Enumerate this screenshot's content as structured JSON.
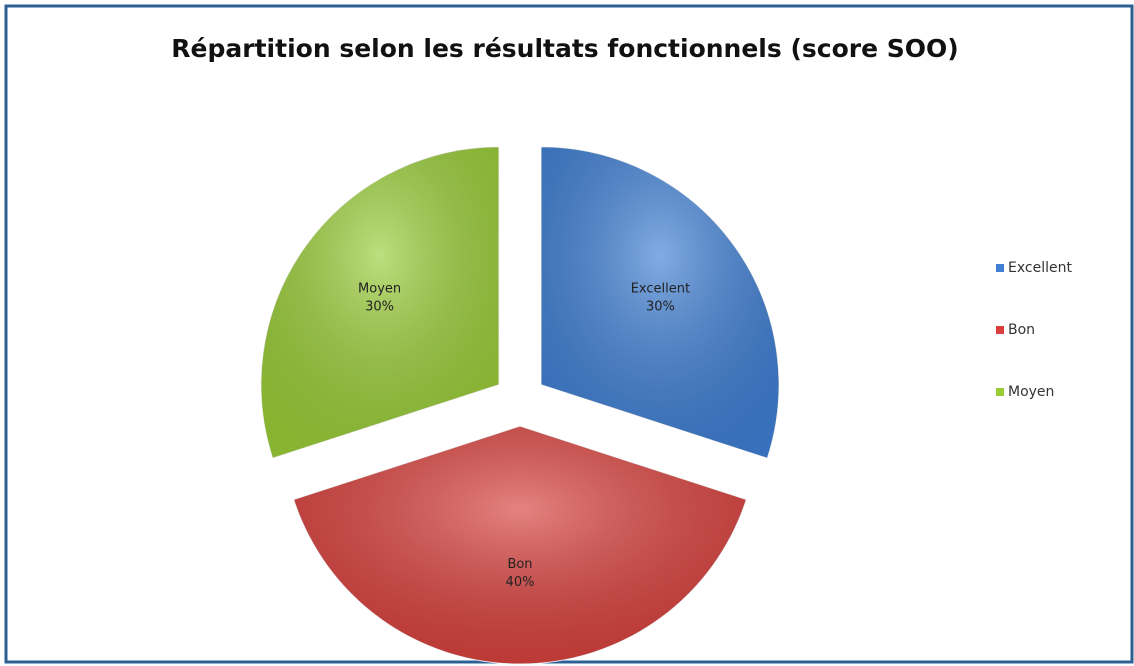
{
  "chart_data": {
    "type": "pie",
    "title": "Répartition selon les résultats fonctionnels (score SOO)",
    "categories": [
      "Excellent",
      "Bon",
      "Moyen"
    ],
    "values": [
      30,
      40,
      30
    ],
    "value_labels": [
      "30%",
      "40%",
      "30%"
    ],
    "colors": [
      "#3f7fd4",
      "#d8403c",
      "#9acd38"
    ],
    "legend": "right"
  }
}
